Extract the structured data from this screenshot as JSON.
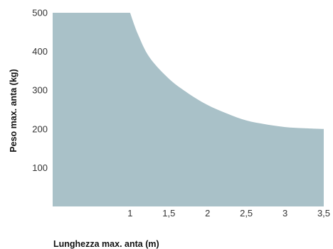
{
  "chart_data": {
    "type": "area",
    "title": "",
    "xlabel": "Lunghezza max. anta (m)",
    "ylabel": "Peso max. anta (kg)",
    "xlim": [
      0,
      3.5
    ],
    "ylim": [
      0,
      500
    ],
    "x_ticks": [
      {
        "value": 1,
        "label": "1"
      },
      {
        "value": 1.5,
        "label": "1,5"
      },
      {
        "value": 2,
        "label": "2"
      },
      {
        "value": 2.5,
        "label": "2,5"
      },
      {
        "value": 3,
        "label": "3"
      },
      {
        "value": 3.5,
        "label": "3,5"
      }
    ],
    "y_ticks": [
      {
        "value": 100,
        "label": "100"
      },
      {
        "value": 200,
        "label": "200"
      },
      {
        "value": 300,
        "label": "300"
      },
      {
        "value": 400,
        "label": "400"
      },
      {
        "value": 500,
        "label": "500"
      }
    ],
    "series": [
      {
        "x": [
          0,
          1.0,
          1.1,
          1.25,
          1.5,
          1.75,
          2.0,
          2.25,
          2.5,
          2.75,
          3.0,
          3.25,
          3.5
        ],
        "values": [
          500,
          500,
          445,
          385,
          330,
          292,
          262,
          240,
          222,
          212,
          205,
          202,
          200
        ]
      }
    ],
    "fill_color": "#a9c1c8",
    "grid": false,
    "legend": "none"
  }
}
